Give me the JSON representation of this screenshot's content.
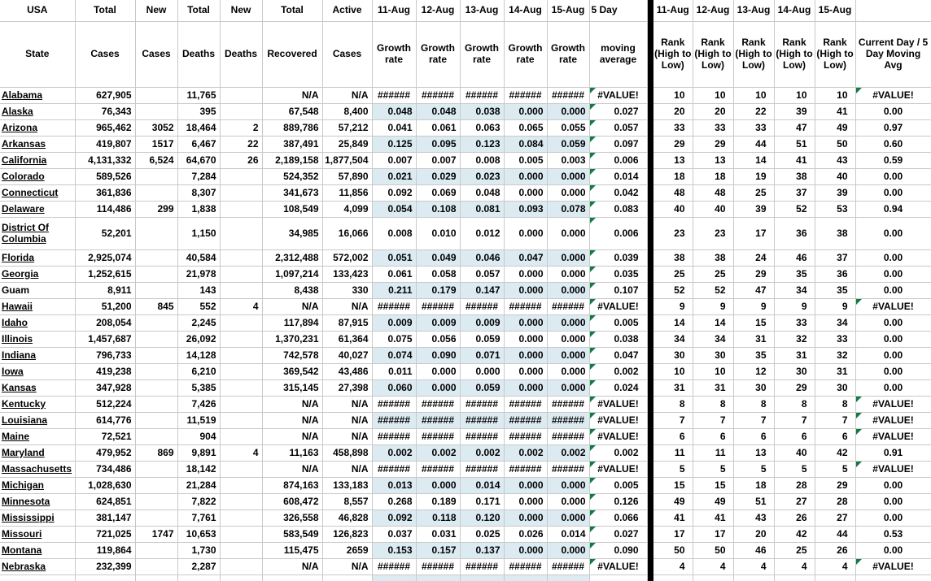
{
  "meta": {
    "app": "spreadsheet",
    "band_blue": "#dcebf2",
    "triangle_green": "#107c41",
    "gridline": "#c9c9c9",
    "divider_color": "#000000"
  },
  "header": {
    "left_top": [
      "USA",
      "Total",
      "New",
      "Total",
      "New",
      "Total",
      "Active",
      "11-Aug",
      "12-Aug",
      "13-Aug",
      "14-Aug",
      "15-Aug",
      "5 Day"
    ],
    "left_bottom": [
      "State",
      "Cases",
      "Cases",
      "Deaths",
      "Deaths",
      "Recovered",
      "Cases",
      "Growth rate",
      "Growth rate",
      "Growth rate",
      "Growth rate",
      "Growth rate",
      "moving average"
    ],
    "right_top": [
      "11-Aug",
      "12-Aug",
      "13-Aug",
      "14-Aug",
      "15-Aug",
      ""
    ],
    "right_bottom": [
      "Rank (High to Low)",
      "Rank (High to Low)",
      "Rank (High to Low)",
      "Rank (High to Low)",
      "Rank (High to Low)",
      "Current Day / 5 Day Moving Avg"
    ]
  },
  "rows": [
    {
      "state": "Alabama",
      "cases": "627,905",
      "new_cases": "",
      "deaths": "11,765",
      "new_deaths": "",
      "recovered": "N/A",
      "active": "N/A",
      "growth": [
        "######",
        "######",
        "######",
        "######",
        "######"
      ],
      "moving_avg": "#VALUE!",
      "ranks": [
        "10",
        "10",
        "10",
        "10",
        "10"
      ],
      "ratio": "#VALUE!"
    },
    {
      "state": "Alaska",
      "cases": "76,343",
      "new_cases": "",
      "deaths": "395",
      "new_deaths": "",
      "recovered": "67,548",
      "active": "8,400",
      "growth": [
        "0.048",
        "0.048",
        "0.038",
        "0.000",
        "0.000"
      ],
      "moving_avg": "0.027",
      "ranks": [
        "20",
        "20",
        "22",
        "39",
        "41"
      ],
      "ratio": "0.00"
    },
    {
      "state": "Arizona",
      "cases": "965,462",
      "new_cases": "3052",
      "deaths": "18,464",
      "new_deaths": "2",
      "recovered": "889,786",
      "active": "57,212",
      "growth": [
        "0.041",
        "0.061",
        "0.063",
        "0.065",
        "0.055"
      ],
      "moving_avg": "0.057",
      "ranks": [
        "33",
        "33",
        "33",
        "47",
        "49"
      ],
      "ratio": "0.97"
    },
    {
      "state": "Arkansas",
      "cases": "419,807",
      "new_cases": "1517",
      "deaths": "6,467",
      "new_deaths": "22",
      "recovered": "387,491",
      "active": "25,849",
      "growth": [
        "0.125",
        "0.095",
        "0.123",
        "0.084",
        "0.059"
      ],
      "moving_avg": "0.097",
      "ranks": [
        "29",
        "29",
        "44",
        "51",
        "50"
      ],
      "ratio": "0.60"
    },
    {
      "state": "California",
      "cases": "4,131,332",
      "new_cases": "6,524",
      "deaths": "64,670",
      "new_deaths": "26",
      "recovered": "2,189,158",
      "active": "1,877,504",
      "growth": [
        "0.007",
        "0.007",
        "0.008",
        "0.005",
        "0.003"
      ],
      "moving_avg": "0.006",
      "ranks": [
        "13",
        "13",
        "14",
        "41",
        "43"
      ],
      "ratio": "0.59"
    },
    {
      "state": "Colorado",
      "cases": "589,526",
      "new_cases": "",
      "deaths": "7,284",
      "new_deaths": "",
      "recovered": "524,352",
      "active": "57,890",
      "growth": [
        "0.021",
        "0.029",
        "0.023",
        "0.000",
        "0.000"
      ],
      "moving_avg": "0.014",
      "ranks": [
        "18",
        "18",
        "19",
        "38",
        "40"
      ],
      "ratio": "0.00"
    },
    {
      "state": "Connecticut",
      "cases": "361,836",
      "new_cases": "",
      "deaths": "8,307",
      "new_deaths": "",
      "recovered": "341,673",
      "active": "11,856",
      "growth": [
        "0.092",
        "0.069",
        "0.048",
        "0.000",
        "0.000"
      ],
      "moving_avg": "0.042",
      "ranks": [
        "48",
        "48",
        "25",
        "37",
        "39"
      ],
      "ratio": "0.00"
    },
    {
      "state": "Delaware",
      "cases": "114,486",
      "new_cases": "299",
      "deaths": "1,838",
      "new_deaths": "",
      "recovered": "108,549",
      "active": "4,099",
      "growth": [
        "0.054",
        "0.108",
        "0.081",
        "0.093",
        "0.078"
      ],
      "moving_avg": "0.083",
      "ranks": [
        "40",
        "40",
        "39",
        "52",
        "53"
      ],
      "ratio": "0.94"
    },
    {
      "state": "District Of Columbia",
      "two_line": true,
      "state_lines": [
        "District Of",
        "Columbia"
      ],
      "cases": "52,201",
      "new_cases": "",
      "deaths": "1,150",
      "new_deaths": "",
      "recovered": "34,985",
      "active": "16,066",
      "growth": [
        "0.008",
        "0.010",
        "0.012",
        "0.000",
        "0.000"
      ],
      "moving_avg": "0.006",
      "ranks": [
        "23",
        "23",
        "17",
        "36",
        "38"
      ],
      "ratio": "0.00"
    },
    {
      "state": "Florida",
      "cases": "2,925,074",
      "new_cases": "",
      "deaths": "40,584",
      "new_deaths": "",
      "recovered": "2,312,488",
      "active": "572,002",
      "growth": [
        "0.051",
        "0.049",
        "0.046",
        "0.047",
        "0.000"
      ],
      "moving_avg": "0.039",
      "ranks": [
        "38",
        "38",
        "24",
        "46",
        "37"
      ],
      "ratio": "0.00"
    },
    {
      "state": "Georgia",
      "cases": "1,252,615",
      "new_cases": "",
      "deaths": "21,978",
      "new_deaths": "",
      "recovered": "1,097,214",
      "active": "133,423",
      "growth": [
        "0.061",
        "0.058",
        "0.057",
        "0.000",
        "0.000"
      ],
      "moving_avg": "0.035",
      "ranks": [
        "25",
        "25",
        "29",
        "35",
        "36"
      ],
      "ratio": "0.00"
    },
    {
      "state": "Guam",
      "no_underline": true,
      "cases": "8,911",
      "new_cases": "",
      "deaths": "143",
      "new_deaths": "",
      "recovered": "8,438",
      "active": "330",
      "growth": [
        "0.211",
        "0.179",
        "0.147",
        "0.000",
        "0.000"
      ],
      "moving_avg": "0.107",
      "ranks": [
        "52",
        "52",
        "47",
        "34",
        "35"
      ],
      "ratio": "0.00"
    },
    {
      "state": "Hawaii",
      "cases": "51,200",
      "new_cases": "845",
      "deaths": "552",
      "new_deaths": "4",
      "recovered": "N/A",
      "active": "N/A",
      "growth": [
        "######",
        "######",
        "######",
        "######",
        "######"
      ],
      "moving_avg": "#VALUE!",
      "ranks": [
        "9",
        "9",
        "9",
        "9",
        "9"
      ],
      "ratio": "#VALUE!"
    },
    {
      "state": "Idaho",
      "cases": "208,054",
      "new_cases": "",
      "deaths": "2,245",
      "new_deaths": "",
      "recovered": "117,894",
      "active": "87,915",
      "growth": [
        "0.009",
        "0.009",
        "0.009",
        "0.000",
        "0.000"
      ],
      "moving_avg": "0.005",
      "ranks": [
        "14",
        "14",
        "15",
        "33",
        "34"
      ],
      "ratio": "0.00"
    },
    {
      "state": "Illinois",
      "cases": "1,457,687",
      "new_cases": "",
      "deaths": "26,092",
      "new_deaths": "",
      "recovered": "1,370,231",
      "active": "61,364",
      "growth": [
        "0.075",
        "0.056",
        "0.059",
        "0.000",
        "0.000"
      ],
      "moving_avg": "0.038",
      "ranks": [
        "34",
        "34",
        "31",
        "32",
        "33"
      ],
      "ratio": "0.00"
    },
    {
      "state": "Indiana",
      "cases": "796,733",
      "new_cases": "",
      "deaths": "14,128",
      "new_deaths": "",
      "recovered": "742,578",
      "active": "40,027",
      "growth": [
        "0.074",
        "0.090",
        "0.071",
        "0.000",
        "0.000"
      ],
      "moving_avg": "0.047",
      "ranks": [
        "30",
        "30",
        "35",
        "31",
        "32"
      ],
      "ratio": "0.00"
    },
    {
      "state": "Iowa",
      "cases": "419,238",
      "new_cases": "",
      "deaths": "6,210",
      "new_deaths": "",
      "recovered": "369,542",
      "active": "43,486",
      "growth": [
        "0.011",
        "0.000",
        "0.000",
        "0.000",
        "0.000"
      ],
      "moving_avg": "0.002",
      "ranks": [
        "10",
        "10",
        "12",
        "30",
        "31"
      ],
      "ratio": "0.00"
    },
    {
      "state": "Kansas",
      "cases": "347,928",
      "new_cases": "",
      "deaths": "5,385",
      "new_deaths": "",
      "recovered": "315,145",
      "active": "27,398",
      "growth": [
        "0.060",
        "0.000",
        "0.059",
        "0.000",
        "0.000"
      ],
      "moving_avg": "0.024",
      "ranks": [
        "31",
        "31",
        "30",
        "29",
        "30"
      ],
      "ratio": "0.00"
    },
    {
      "state": "Kentucky",
      "cases": "512,224",
      "new_cases": "",
      "deaths": "7,426",
      "new_deaths": "",
      "recovered": "N/A",
      "active": "N/A",
      "growth": [
        "######",
        "######",
        "######",
        "######",
        "######"
      ],
      "moving_avg": "#VALUE!",
      "ranks": [
        "8",
        "8",
        "8",
        "8",
        "8"
      ],
      "ratio": "#VALUE!"
    },
    {
      "state": "Louisiana",
      "cases": "614,776",
      "new_cases": "",
      "deaths": "11,519",
      "new_deaths": "",
      "recovered": "N/A",
      "active": "N/A",
      "growth": [
        "######",
        "######",
        "######",
        "######",
        "######"
      ],
      "moving_avg": "#VALUE!",
      "ranks": [
        "7",
        "7",
        "7",
        "7",
        "7"
      ],
      "ratio": "#VALUE!"
    },
    {
      "state": "Maine",
      "cases": "72,521",
      "new_cases": "",
      "deaths": "904",
      "new_deaths": "",
      "recovered": "N/A",
      "active": "N/A",
      "growth": [
        "######",
        "######",
        "######",
        "######",
        "######"
      ],
      "moving_avg": "#VALUE!",
      "ranks": [
        "6",
        "6",
        "6",
        "6",
        "6"
      ],
      "ratio": "#VALUE!"
    },
    {
      "state": "Maryland",
      "cases": "479,952",
      "new_cases": "869",
      "deaths": "9,891",
      "new_deaths": "4",
      "recovered": "11,163",
      "active": "458,898",
      "growth": [
        "0.002",
        "0.002",
        "0.002",
        "0.002",
        "0.002"
      ],
      "moving_avg": "0.002",
      "ranks": [
        "11",
        "11",
        "13",
        "40",
        "42"
      ],
      "ratio": "0.91"
    },
    {
      "state": "Massachusetts",
      "cases": "734,486",
      "new_cases": "",
      "deaths": "18,142",
      "new_deaths": "",
      "recovered": "N/A",
      "active": "N/A",
      "growth": [
        "######",
        "######",
        "######",
        "######",
        "######"
      ],
      "moving_avg": "#VALUE!",
      "ranks": [
        "5",
        "5",
        "5",
        "5",
        "5"
      ],
      "ratio": "#VALUE!"
    },
    {
      "state": "Michigan",
      "cases": "1,028,630",
      "new_cases": "",
      "deaths": "21,284",
      "new_deaths": "",
      "recovered": "874,163",
      "active": "133,183",
      "growth": [
        "0.013",
        "0.000",
        "0.014",
        "0.000",
        "0.000"
      ],
      "moving_avg": "0.005",
      "ranks": [
        "15",
        "15",
        "18",
        "28",
        "29"
      ],
      "ratio": "0.00"
    },
    {
      "state": "Minnesota",
      "cases": "624,851",
      "new_cases": "",
      "deaths": "7,822",
      "new_deaths": "",
      "recovered": "608,472",
      "active": "8,557",
      "growth": [
        "0.268",
        "0.189",
        "0.171",
        "0.000",
        "0.000"
      ],
      "moving_avg": "0.126",
      "ranks": [
        "49",
        "49",
        "51",
        "27",
        "28"
      ],
      "ratio": "0.00"
    },
    {
      "state": "Mississippi",
      "cases": "381,147",
      "new_cases": "",
      "deaths": "7,761",
      "new_deaths": "",
      "recovered": "326,558",
      "active": "46,828",
      "growth": [
        "0.092",
        "0.118",
        "0.120",
        "0.000",
        "0.000"
      ],
      "moving_avg": "0.066",
      "ranks": [
        "41",
        "41",
        "43",
        "26",
        "27"
      ],
      "ratio": "0.00"
    },
    {
      "state": "Missouri",
      "cases": "721,025",
      "new_cases": "1747",
      "deaths": "10,653",
      "new_deaths": "",
      "recovered": "583,549",
      "active": "126,823",
      "growth": [
        "0.037",
        "0.031",
        "0.025",
        "0.026",
        "0.014"
      ],
      "moving_avg": "0.027",
      "ranks": [
        "17",
        "17",
        "20",
        "42",
        "44"
      ],
      "ratio": "0.53"
    },
    {
      "state": "Montana",
      "cases": "119,864",
      "new_cases": "",
      "deaths": "1,730",
      "new_deaths": "",
      "recovered": "115,475",
      "active": "2659",
      "growth": [
        "0.153",
        "0.157",
        "0.137",
        "0.000",
        "0.000"
      ],
      "moving_avg": "0.090",
      "ranks": [
        "50",
        "50",
        "46",
        "25",
        "26"
      ],
      "ratio": "0.00"
    },
    {
      "state": "Nebraska",
      "cases": "232,399",
      "new_cases": "",
      "deaths": "2,287",
      "new_deaths": "",
      "recovered": "N/A",
      "active": "N/A",
      "growth": [
        "######",
        "######",
        "######",
        "######",
        "######"
      ],
      "moving_avg": "#VALUE!",
      "ranks": [
        "4",
        "4",
        "4",
        "4",
        "4"
      ],
      "ratio": "#VALUE!"
    }
  ]
}
